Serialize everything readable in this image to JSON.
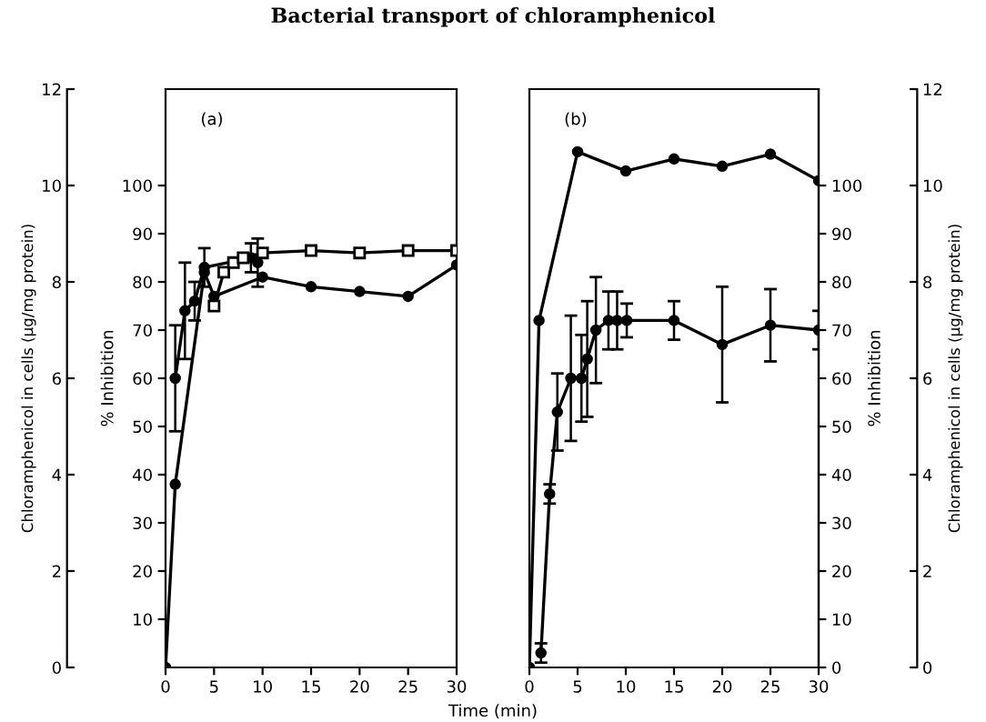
{
  "chart_data": [
    {
      "type": "line",
      "title": "Bacterial transport of chloramphenicol",
      "ylabel": "% Inhibition",
      "y2label": "Chloramphenicol in cells (µg/mg protein)",
      "annotations": [
        "(a)"
      ],
      "xlim": [
        0,
        30
      ],
      "xticks": [
        0,
        5,
        10,
        15,
        20,
        25,
        30
      ],
      "ylim": [
        0,
        120
      ],
      "yticks": [
        10,
        20,
        30,
        40,
        50,
        60,
        70,
        80,
        90,
        100
      ],
      "y2lim": [
        0,
        12
      ],
      "y2ticks": [
        0,
        2,
        4,
        6,
        8,
        10,
        12
      ],
      "grid": false,
      "legend": false,
      "line_style": "solid",
      "series": [
        {
          "color": "#000000",
          "marker": "circle",
          "x": [
            1,
            2,
            3,
            4,
            8.8,
            9.5
          ],
          "values": [
            60,
            74,
            76,
            83,
            85,
            84
          ],
          "errors": [
            11,
            10,
            4,
            4,
            3,
            5
          ]
        },
        {
          "color": "#000000",
          "marker": "square",
          "x": [
            5,
            6,
            7,
            8,
            10,
            15,
            20,
            25,
            30
          ],
          "values": [
            75,
            82,
            84,
            85,
            86,
            86.5,
            86,
            86.5,
            86.5
          ]
        },
        {
          "color": "#000000",
          "marker": "circle",
          "x": [
            0,
            1,
            4,
            5,
            10,
            15,
            20,
            25,
            30
          ],
          "values": [
            0,
            38,
            82,
            77,
            81,
            79,
            78,
            77,
            83.5
          ]
        }
      ]
    },
    {
      "type": "line",
      "xlabel": "Time (min)",
      "y2label": "% Inhibition",
      "y3label": "Chloramphenicol in cells (µg/mg protein)",
      "annotations": [
        "(b)"
      ],
      "xlim": [
        0,
        30
      ],
      "xticks": [
        0,
        5,
        10,
        15,
        20,
        25,
        30
      ],
      "y2lim": [
        0,
        120
      ],
      "y2ticks": [
        0,
        10,
        20,
        30,
        40,
        50,
        60,
        70,
        80,
        90,
        100
      ],
      "y3lim": [
        0,
        12
      ],
      "y3ticks": [
        0,
        2,
        4,
        6,
        8,
        10,
        12
      ],
      "grid": false,
      "legend": false,
      "line_style": "solid",
      "series": [
        {
          "color": "#000000",
          "marker": "circle",
          "axis": "y2",
          "x": [
            0,
            1,
            5,
            10,
            15,
            20,
            25,
            30
          ],
          "values": [
            0,
            72,
            107,
            103,
            105.5,
            104,
            106.5,
            101
          ]
        },
        {
          "color": "#000000",
          "marker": "circle",
          "axis": "y2",
          "x": [
            1.2,
            2.1,
            2.9,
            4.3,
            5.4,
            6,
            6.9,
            8.2,
            9.1,
            10.1,
            15,
            20,
            25,
            30
          ],
          "values": [
            3,
            36,
            53,
            60,
            60,
            64,
            70,
            72,
            72,
            72,
            72,
            67,
            71,
            70
          ],
          "errors": [
            2,
            2,
            8,
            13,
            9,
            12,
            11,
            6,
            6,
            3.5,
            4,
            12,
            7.5,
            4
          ]
        }
      ]
    }
  ]
}
